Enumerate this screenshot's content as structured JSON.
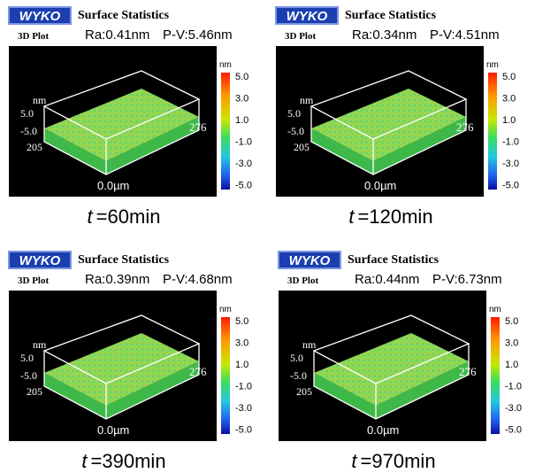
{
  "panels": [
    {
      "logo": "WYKO",
      "title": "Surface Statistics",
      "subtitle": "3D Plot",
      "ra": "Ra:0.41nm",
      "pv": "P-V:5.46nm",
      "z_unit": "nm",
      "z_top": "5.0",
      "z_bottom": "-5.0",
      "y_extent": "205",
      "x_extent": "276",
      "origin": "0.0µm",
      "colorbar": {
        "unit": "nm",
        "ticks": [
          "5.0",
          "3.0",
          "1.0",
          "-1.0",
          "-3.0",
          "-5.0"
        ]
      },
      "caption": {
        "variable": "t",
        "text": "=60min"
      }
    },
    {
      "logo": "WYKO",
      "title": "Surface Statistics",
      "subtitle": "3D Plot",
      "ra": "Ra:0.34nm",
      "pv": "P-V:4.51nm",
      "z_unit": "nm",
      "z_top": "5.0",
      "z_bottom": "-5.0",
      "y_extent": "205",
      "x_extent": "276",
      "origin": "0.0µm",
      "colorbar": {
        "unit": "nm",
        "ticks": [
          "5.0",
          "3.0",
          "1.0",
          "-1.0",
          "-3.0",
          "-5.0"
        ]
      },
      "caption": {
        "variable": "t",
        "text": "=120min"
      }
    },
    {
      "logo": "WYKO",
      "title": "Surface Statistics",
      "subtitle": "3D Plot",
      "ra": "Ra:0.39nm",
      "pv": "P-V:4.68nm",
      "z_unit": "nm",
      "z_top": "5.0",
      "z_bottom": "-5.0",
      "y_extent": "205",
      "x_extent": "276",
      "origin": "0.0µm",
      "colorbar": {
        "unit": "nm",
        "ticks": [
          "5.0",
          "3.0",
          "1.0",
          "-1.0",
          "-3.0",
          "-5.0"
        ]
      },
      "caption": {
        "variable": "t",
        "text": "=390min"
      }
    },
    {
      "logo": "WYKO",
      "title": "Surface Statistics",
      "subtitle": "3D Plot",
      "ra": "Ra:0.44nm",
      "pv": "P-V:6.73nm",
      "z_unit": "nm",
      "z_top": "5.0",
      "z_bottom": "-5.0",
      "y_extent": "205",
      "x_extent": "276",
      "origin": "0.0µm",
      "colorbar": {
        "unit": "nm",
        "ticks": [
          "5.0",
          "3.0",
          "1.0",
          "-1.0",
          "-3.0",
          "-5.0"
        ]
      },
      "caption": {
        "variable": "t",
        "text": "=970min"
      }
    }
  ]
}
